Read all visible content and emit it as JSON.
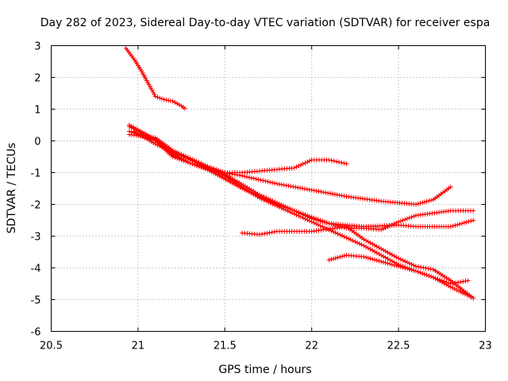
{
  "chart_data": {
    "type": "scatter",
    "title": "Day 282 of 2023, Sidereal Day-to-day VTEC variation (SDTVAR) for receiver espa",
    "xlabel": "GPS time / hours",
    "ylabel": "SDTVAR / TECUs",
    "xlim": [
      20.5,
      23
    ],
    "ylim": [
      -6,
      3
    ],
    "xticks": [
      "20.5",
      "21",
      "21.5",
      "22",
      "22.5",
      "23"
    ],
    "yticks": [
      "-6",
      "-5",
      "-4",
      "-3",
      "-2",
      "-1",
      "0",
      "1",
      "2",
      "3"
    ],
    "grid": true,
    "marker": "+",
    "color": "#ff0000",
    "series": [
      {
        "name": "s1",
        "points": [
          [
            20.93,
            2.92
          ],
          [
            20.98,
            2.55
          ],
          [
            21.02,
            2.2
          ],
          [
            21.05,
            1.9
          ],
          [
            21.08,
            1.6
          ],
          [
            21.1,
            1.4
          ],
          [
            21.15,
            1.3
          ],
          [
            21.2,
            1.25
          ],
          [
            21.25,
            1.1
          ],
          [
            21.27,
            1.02
          ]
        ]
      },
      {
        "name": "s2",
        "points": [
          [
            20.95,
            0.5
          ],
          [
            21.0,
            0.35
          ],
          [
            21.1,
            0.0
          ],
          [
            21.2,
            -0.4
          ],
          [
            21.3,
            -0.7
          ],
          [
            21.4,
            -0.85
          ],
          [
            21.5,
            -1.0
          ],
          [
            21.6,
            -1.0
          ],
          [
            21.7,
            -0.95
          ],
          [
            21.8,
            -0.9
          ],
          [
            21.9,
            -0.85
          ],
          [
            22.0,
            -0.6
          ],
          [
            22.1,
            -0.6
          ],
          [
            22.2,
            -0.72
          ]
        ]
      },
      {
        "name": "s3",
        "points": [
          [
            20.95,
            0.2
          ],
          [
            21.1,
            0.1
          ],
          [
            21.2,
            -0.3
          ],
          [
            21.3,
            -0.55
          ],
          [
            21.4,
            -0.8
          ],
          [
            21.5,
            -1.0
          ],
          [
            21.6,
            -1.1
          ],
          [
            21.8,
            -1.35
          ],
          [
            22.0,
            -1.55
          ],
          [
            22.2,
            -1.75
          ],
          [
            22.4,
            -1.9
          ],
          [
            22.6,
            -2.0
          ],
          [
            22.7,
            -1.85
          ],
          [
            22.8,
            -1.45
          ]
        ]
      },
      {
        "name": "s4",
        "points": [
          [
            20.95,
            0.45
          ],
          [
            21.1,
            0.05
          ],
          [
            21.2,
            -0.45
          ],
          [
            21.3,
            -0.7
          ],
          [
            21.5,
            -1.05
          ],
          [
            21.7,
            -1.7
          ],
          [
            21.9,
            -2.2
          ],
          [
            22.0,
            -2.45
          ],
          [
            22.1,
            -2.6
          ],
          [
            22.3,
            -2.7
          ],
          [
            22.5,
            -2.65
          ],
          [
            22.6,
            -2.7
          ],
          [
            22.8,
            -2.7
          ],
          [
            22.93,
            -2.5
          ]
        ]
      },
      {
        "name": "s5",
        "points": [
          [
            20.95,
            0.3
          ],
          [
            21.1,
            0.0
          ],
          [
            21.2,
            -0.5
          ],
          [
            21.4,
            -0.9
          ],
          [
            21.6,
            -1.5
          ],
          [
            21.8,
            -2.0
          ],
          [
            22.0,
            -2.4
          ],
          [
            22.1,
            -2.6
          ],
          [
            22.2,
            -2.75
          ],
          [
            22.3,
            -2.75
          ],
          [
            22.4,
            -2.8
          ],
          [
            22.5,
            -2.55
          ],
          [
            22.6,
            -2.35
          ],
          [
            22.8,
            -2.2
          ],
          [
            22.93,
            -2.2
          ]
        ]
      },
      {
        "name": "s6",
        "points": [
          [
            20.98,
            0.3
          ],
          [
            21.1,
            -0.1
          ],
          [
            21.3,
            -0.6
          ],
          [
            21.5,
            -1.1
          ],
          [
            21.7,
            -1.8
          ],
          [
            21.9,
            -2.3
          ],
          [
            22.1,
            -2.8
          ],
          [
            22.3,
            -3.3
          ],
          [
            22.4,
            -3.6
          ],
          [
            22.5,
            -3.9
          ],
          [
            22.6,
            -4.1
          ],
          [
            22.7,
            -4.3
          ],
          [
            22.8,
            -4.5
          ],
          [
            22.9,
            -4.4
          ]
        ]
      },
      {
        "name": "s7",
        "points": [
          [
            21.6,
            -2.9
          ],
          [
            21.7,
            -2.95
          ],
          [
            21.8,
            -2.85
          ],
          [
            21.9,
            -2.85
          ],
          [
            22.0,
            -2.85
          ],
          [
            22.2,
            -2.7
          ],
          [
            22.3,
            -3.1
          ],
          [
            22.4,
            -3.4
          ],
          [
            22.5,
            -3.7
          ],
          [
            22.6,
            -3.95
          ],
          [
            22.7,
            -4.05
          ],
          [
            22.8,
            -4.4
          ],
          [
            22.93,
            -4.95
          ]
        ]
      },
      {
        "name": "s8",
        "points": [
          [
            22.1,
            -3.75
          ],
          [
            22.2,
            -3.6
          ],
          [
            22.3,
            -3.65
          ],
          [
            22.4,
            -3.8
          ],
          [
            22.5,
            -3.95
          ],
          [
            22.6,
            -4.1
          ],
          [
            22.7,
            -4.3
          ],
          [
            22.8,
            -4.6
          ],
          [
            22.93,
            -4.95
          ]
        ]
      }
    ]
  }
}
